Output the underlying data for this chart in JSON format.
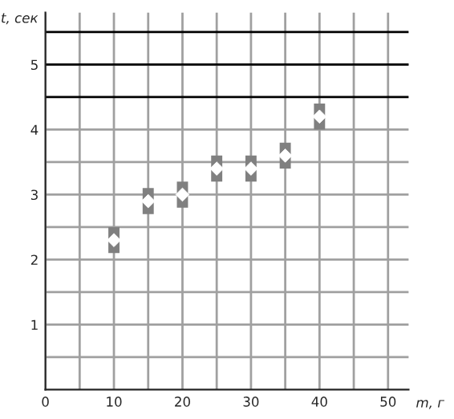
{
  "chart_data": {
    "type": "scatter",
    "xlabel": "m, г",
    "ylabel": "t, сек",
    "x": [
      10,
      15,
      20,
      25,
      30,
      35,
      40
    ],
    "series": [
      {
        "color": "#ffffff",
        "values": [
          2.3,
          2.9,
          3.0,
          3.4,
          3.4,
          3.6,
          4.2
        ],
        "errors": [
          0.2,
          0.2,
          0.2,
          0.2,
          0.2,
          0.2,
          0.2
        ]
      }
    ],
    "marker": "diamond",
    "grid": true,
    "xlim": [
      0,
      53
    ],
    "ylim": [
      0,
      5.8
    ],
    "xticks": [
      0,
      {
        "value": 5,
        "label": null
      },
      10,
      {
        "value": 15,
        "label": null
      },
      20,
      {
        "value": 25,
        "label": null
      },
      30,
      {
        "value": 35,
        "label": null
      },
      40,
      {
        "value": 45,
        "label": null
      },
      50
    ],
    "yticks": [
      {
        "value": 0.5,
        "label": null
      },
      1,
      {
        "value": 1.5,
        "label": null
      },
      2,
      {
        "value": 2.5,
        "label": null
      },
      3,
      {
        "value": 3.5,
        "label": null
      },
      4,
      5
    ],
    "ref_lines": [
      {
        "axis": "y",
        "value": 4.5,
        "color": "#000000"
      },
      {
        "axis": "y",
        "value": 5,
        "color": "#000000"
      },
      {
        "axis": "y",
        "value": 5.5,
        "color": "#000000"
      }
    ]
  }
}
